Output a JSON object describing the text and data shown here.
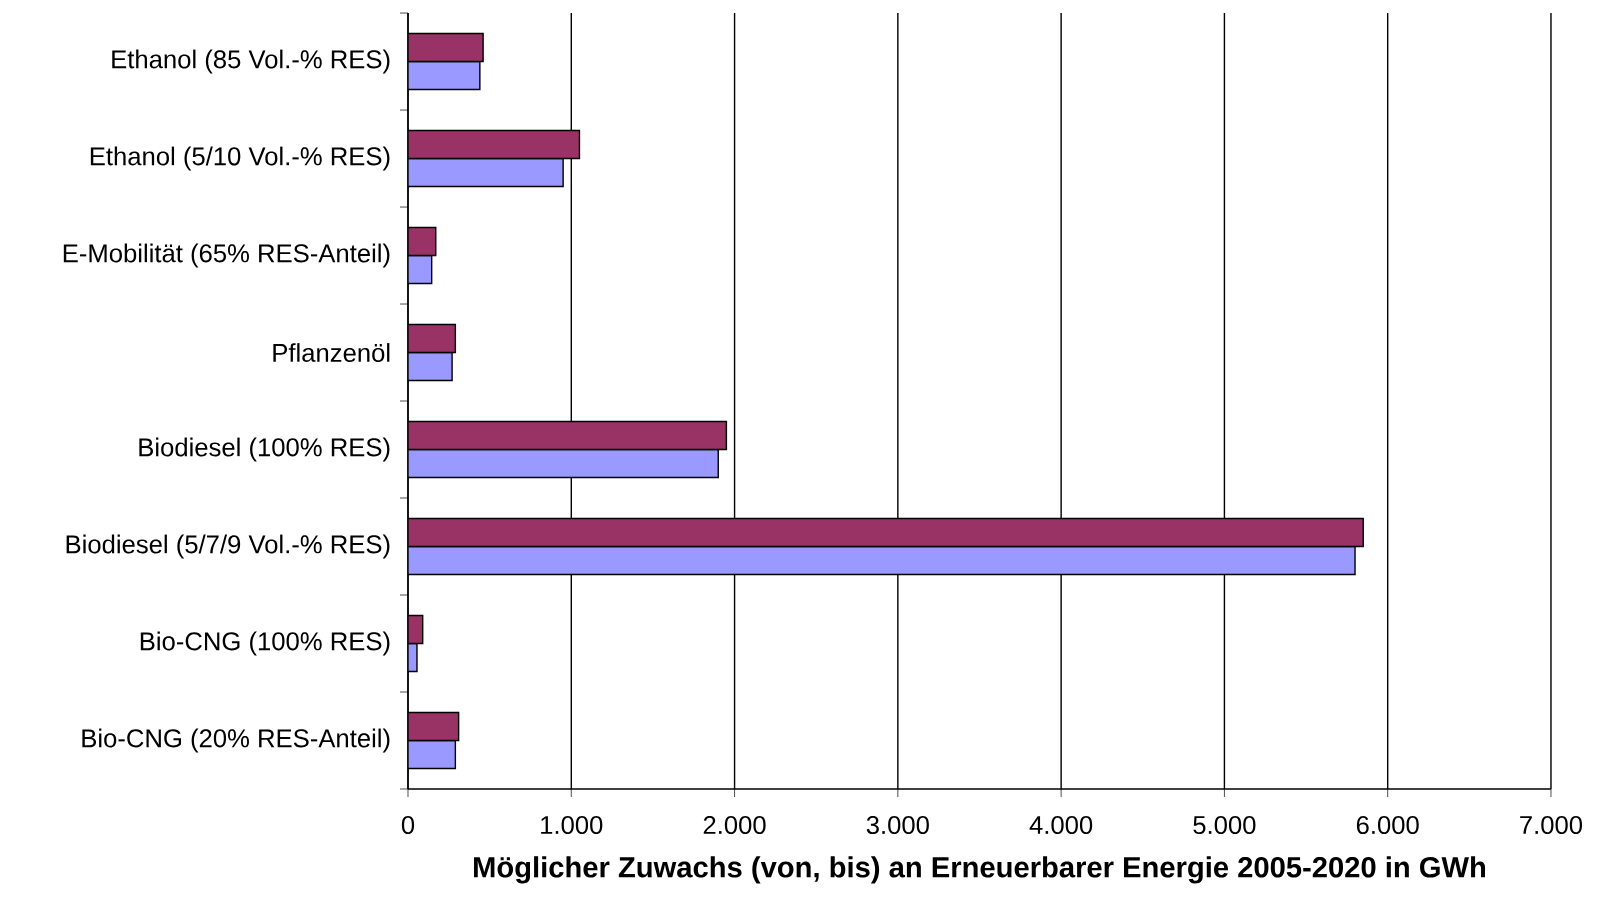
{
  "chart_data": {
    "type": "bar",
    "orientation": "horizontal",
    "xlabel": "Möglicher Zuwachs (von, bis) an Erneuerbarer Energie 2005-2020 in GWh",
    "categories": [
      "Ethanol (85 Vol.-% RES)",
      "Ethanol (5/10 Vol.-% RES)",
      "E-Mobilität (65% RES-Anteil)",
      "Pflanzenöl",
      "Biodiesel (100% RES)",
      "Biodiesel (5/7/9 Vol.-% RES)",
      "Bio-CNG (100% RES)",
      "Bio-CNG (20% RES-Anteil)"
    ],
    "series": [
      {
        "color": "#9999ff",
        "values": [
          440,
          950,
          145,
          270,
          1900,
          5800,
          55,
          290
        ]
      },
      {
        "color": "#993366",
        "values": [
          460,
          1050,
          170,
          290,
          1950,
          5850,
          90,
          310
        ]
      }
    ],
    "xlim": [
      0,
      7000
    ],
    "xticks": [
      0,
      {
        "value": 1000,
        "label": "1.000"
      },
      {
        "value": 2000,
        "label": "2.000"
      },
      {
        "value": 3000,
        "label": "3.000"
      },
      {
        "value": 4000,
        "label": "4.000"
      },
      {
        "value": 5000,
        "label": "5.000"
      },
      {
        "value": 6000,
        "label": "6.000"
      },
      {
        "value": 7000,
        "label": "7.000"
      }
    ],
    "grid": "x"
  }
}
